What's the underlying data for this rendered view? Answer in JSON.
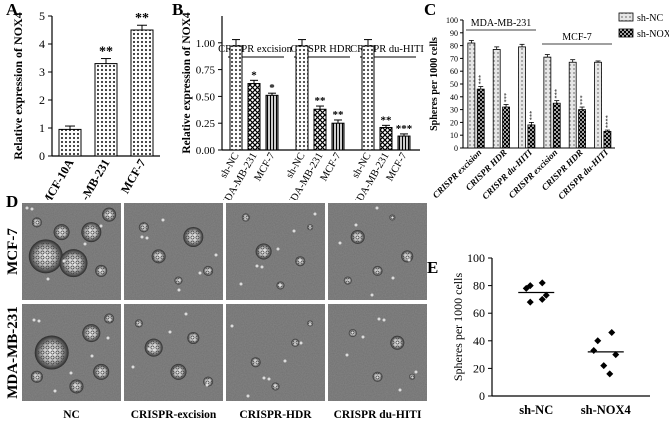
{
  "panels": {
    "A": {
      "letter": "A"
    },
    "B": {
      "letter": "B"
    },
    "C": {
      "letter": "C"
    },
    "D": {
      "letter": "D"
    },
    "E": {
      "letter": "E"
    }
  },
  "chart_data": [
    {
      "id": "A",
      "type": "bar",
      "ylabel": "Relative expression of NOX4",
      "ylim": [
        0,
        5
      ],
      "yticks": [
        0,
        1,
        2,
        3,
        4,
        5
      ],
      "categories": [
        "MCF-10A",
        "MDA-MB-231",
        "MCF-7"
      ],
      "values": [
        0.95,
        3.3,
        4.5
      ],
      "errors": [
        0.12,
        0.18,
        0.17
      ],
      "significance": [
        "",
        "**",
        "**"
      ],
      "colors": [
        "#d9d9d9",
        "#d9d9d9",
        "#d9d9d9"
      ]
    },
    {
      "id": "B",
      "type": "bar",
      "ylabel": "Relative expression of NOX4",
      "ylim": [
        0,
        1.25
      ],
      "yticks": [
        0.0,
        0.25,
        0.5,
        0.75,
        1.0
      ],
      "ytick_labels": [
        "0.00",
        "0.25",
        "0.50",
        "0.75",
        "1.00"
      ],
      "groups": [
        {
          "title": "CRISPR excision",
          "categories": [
            "sh-NC",
            "MDA-MB-231",
            "MCF-7"
          ],
          "values": [
            0.97,
            0.62,
            0.51
          ],
          "errors": [
            0.06,
            0.03,
            0.02
          ],
          "significance": [
            "",
            "*",
            "*"
          ]
        },
        {
          "title": "CRISPR HDR",
          "categories": [
            "sh-NC",
            "MDA-MB-231",
            "MCF-7"
          ],
          "values": [
            0.97,
            0.38,
            0.25
          ],
          "errors": [
            0.06,
            0.03,
            0.03
          ],
          "significance": [
            "",
            "**",
            "**"
          ]
        },
        {
          "title": "CRISPR du-HITI",
          "categories": [
            "sh-NC",
            "MDA-MB-231",
            "MCF-7"
          ],
          "values": [
            0.97,
            0.21,
            0.13
          ],
          "errors": [
            0.06,
            0.02,
            0.02
          ],
          "significance": [
            "",
            "**",
            "***"
          ]
        }
      ]
    },
    {
      "id": "C",
      "type": "bar",
      "ylabel": "Spheres per 1000 cells",
      "ylim": [
        0,
        100
      ],
      "yticks": [
        0,
        10,
        20,
        30,
        40,
        50,
        60,
        70,
        80,
        90,
        100
      ],
      "categories": [
        "CRISPR excision",
        "CRISPR HDR",
        "CRISPR du-HITI",
        "CRISPR excision",
        "CRISPR HDR",
        "CRISPR du-HITI"
      ],
      "group_labels": [
        {
          "text": "MDA-MB-231",
          "span": [
            0,
            2
          ]
        },
        {
          "text": "MCF-7",
          "span": [
            3,
            5
          ]
        }
      ],
      "series": [
        {
          "name": "sh-NC",
          "values": [
            82,
            77,
            79,
            71,
            67,
            67
          ],
          "errors": [
            2,
            2,
            2,
            2,
            2,
            1
          ]
        },
        {
          "name": "sh-NOX4",
          "values": [
            46,
            32,
            18,
            35,
            30,
            13
          ],
          "errors": [
            2,
            2,
            2,
            2,
            2,
            1
          ]
        }
      ],
      "significance": [
        "***",
        "***",
        "***",
        "***",
        "***",
        "****"
      ],
      "legend": "top-right"
    },
    {
      "id": "E",
      "type": "scatter",
      "ylabel": "Spheres per 1000 cells",
      "ylim": [
        0,
        100
      ],
      "yticks": [
        0,
        20,
        40,
        60,
        80,
        100
      ],
      "categories": [
        "sh-NC",
        "sh-NOX4"
      ],
      "points": [
        [
          80,
          82,
          78,
          73,
          68,
          70
        ],
        [
          46,
          40,
          33,
          30,
          22,
          16
        ]
      ],
      "means": [
        75,
        32
      ]
    }
  ],
  "microscopy": {
    "rows": [
      "MCF-7",
      "MDA-MB-231"
    ],
    "cols": [
      "NC",
      "CRISPR-excision",
      "CRISPR-HDR",
      "CRISPR du-HITI"
    ]
  }
}
